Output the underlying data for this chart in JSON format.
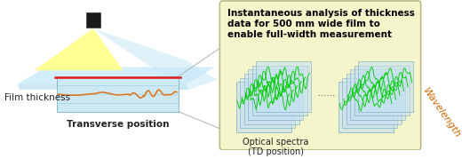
{
  "bg_color": "#ffffff",
  "left_panel": {
    "sensor_color": "#1a1a1a",
    "film_top_color": "#c0e8f8",
    "film_bot_color": "#a0d0e8",
    "cone_color": "#ffff88",
    "cone_alpha": 0.9,
    "fan_color": "#c8e8f5",
    "fan_alpha": 0.55,
    "chart_bg": "#cce8f2",
    "chart_border": "#88bbcc",
    "grid_color": "#99ccdd",
    "red_line_color": "#e02020",
    "orange_line_color": "#e07010",
    "label_film_thickness": "Film thickness",
    "label_transverse": "Transverse position",
    "label_fontsize": 7.5
  },
  "connector": {
    "color": "#bbbbbb",
    "linewidth": 0.8
  },
  "right_panel": {
    "bg_color": "#f5f5cc",
    "border_color": "#bbbb88",
    "title_text": "Instantaneous analysis of thickness\ndata for 500 mm wide film to\nenable full-width measurement",
    "title_fontsize": 7.5,
    "title_color": "#000000",
    "stack_face_color": "#c5e0f0",
    "stack_edge_color": "#6699bb",
    "line_color": "#00cc00",
    "dot_color": "#888888",
    "label_optical": "Optical spectra\n(TD position)",
    "label_wavelength": "Wavelength",
    "label_color": "#cc6600",
    "label_fontsize": 7.5,
    "text_fontsize": 7.0
  }
}
